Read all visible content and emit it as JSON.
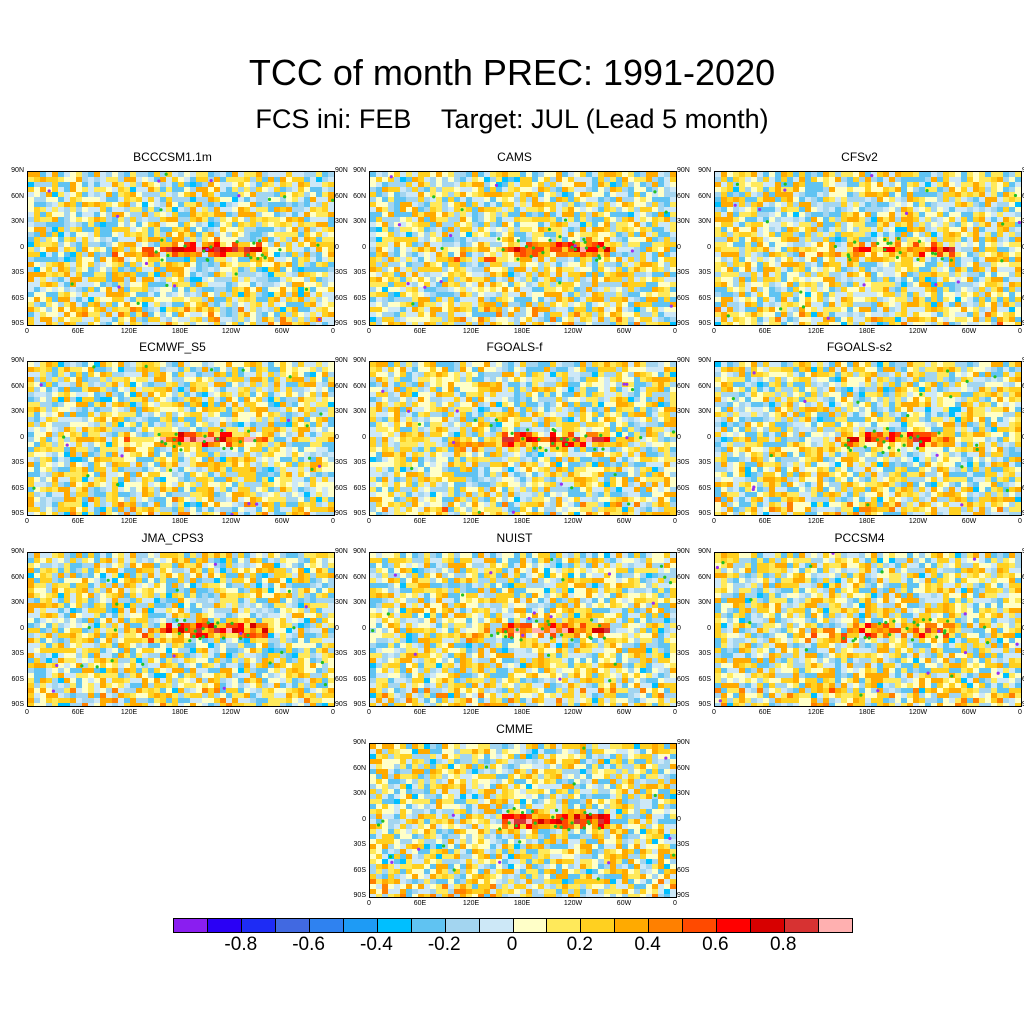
{
  "chart_data": {
    "type": "heatmap",
    "title": "TCC of month PREC: 1991-2020",
    "subtitle": "FCS ini: FEB    Target: JUL (Lead 5 month)",
    "xlabel": "",
    "ylabel": "",
    "x_ticks": [
      "0",
      "60E",
      "120E",
      "180E",
      "120W",
      "60W",
      "0"
    ],
    "y_ticks": [
      "90N",
      "60N",
      "30N",
      "0",
      "30S",
      "60S",
      "90S"
    ],
    "panels": [
      {
        "name": "BCCCSM1.1m",
        "equatorial_pacific_max": 0.7
      },
      {
        "name": "CAMS",
        "equatorial_pacific_max": 0.7
      },
      {
        "name": "CFSv2",
        "equatorial_pacific_max": 0.6
      },
      {
        "name": "ECMWF_S5",
        "equatorial_pacific_max": 0.8
      },
      {
        "name": "FGOALS-f",
        "equatorial_pacific_max": 0.7
      },
      {
        "name": "FGOALS-s2",
        "equatorial_pacific_max": 0.6
      },
      {
        "name": "JMA_CPS3",
        "equatorial_pacific_max": 0.8
      },
      {
        "name": "NUIST",
        "equatorial_pacific_max": 0.7
      },
      {
        "name": "PCCSM4",
        "equatorial_pacific_max": 0.6
      },
      {
        "name": "CMME",
        "equatorial_pacific_max": 0.8
      }
    ],
    "colorbar": {
      "range": [
        -0.9,
        0.9
      ],
      "levels": [
        -0.9,
        -0.8,
        -0.7,
        -0.6,
        -0.5,
        -0.4,
        -0.3,
        -0.2,
        -0.1,
        0,
        0.1,
        0.2,
        0.3,
        0.4,
        0.5,
        0.6,
        0.7,
        0.8,
        0.9
      ],
      "labels": [
        "-0.8",
        "-0.6",
        "-0.4",
        "-0.2",
        "0",
        "0.2",
        "0.4",
        "0.6",
        "0.8"
      ],
      "colors": [
        "#8a1ef0",
        "#2a00f5",
        "#1e2cf5",
        "#4169e1",
        "#2f82f0",
        "#1e9bf5",
        "#00bfff",
        "#60c3f2",
        "#a3d5f0",
        "#cde8f7",
        "#ffffc8",
        "#ffe95a",
        "#ffd020",
        "#ffaa00",
        "#ff8000",
        "#ff4a00",
        "#ff0000",
        "#d70000",
        "#d73232",
        "#ffb0b0"
      ]
    },
    "legend": "bottom",
    "markers": {
      "significant_positive": "#22c022",
      "significant_negative": "#9b30f0"
    }
  }
}
